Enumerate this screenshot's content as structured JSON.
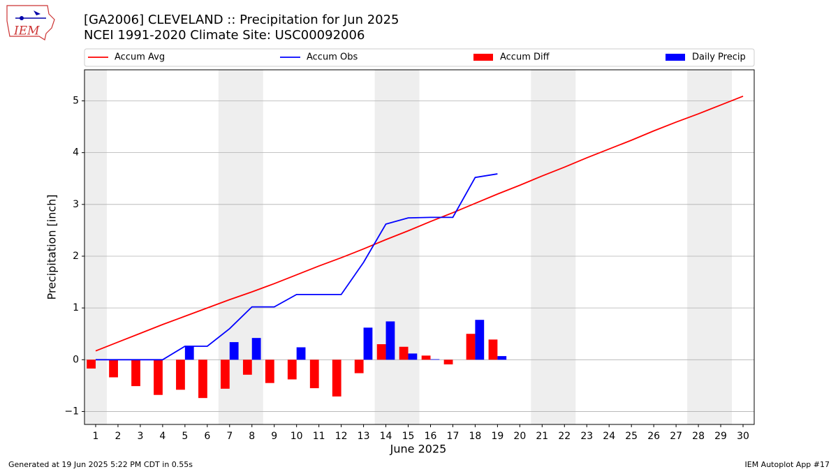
{
  "chart_data": {
    "type": "combo",
    "title": "[GA2006] CLEVELAND :: Precipitation for Jun 2025",
    "subtitle": "NCEI 1991-2020 Climate Site: USC00092006",
    "logo_text": "IEM",
    "x_label": "June 2025",
    "y_label": "Precipitation [inch]",
    "footer_left": "Generated at 19 Jun 2025 5:22 PM CDT in 0.55s",
    "footer_right": "IEM Autoplot App #17",
    "legend": "top",
    "grid": true,
    "weekend_color": "#eeeeee",
    "weekends": [
      [
        0.5,
        1.5
      ],
      [
        6.5,
        8.5
      ],
      [
        13.5,
        15.5
      ],
      [
        20.5,
        22.5
      ],
      [
        27.5,
        29.5
      ]
    ],
    "x": [
      1,
      2,
      3,
      4,
      5,
      6,
      7,
      8,
      9,
      10,
      11,
      12,
      13,
      14,
      15,
      16,
      17,
      18,
      19,
      20,
      21,
      22,
      23,
      24,
      25,
      26,
      27,
      28,
      29,
      30
    ],
    "xlim": [
      0.5,
      30.5
    ],
    "xticks": [
      1,
      2,
      3,
      4,
      5,
      6,
      7,
      8,
      9,
      10,
      11,
      12,
      13,
      14,
      15,
      16,
      17,
      18,
      19,
      20,
      21,
      22,
      23,
      24,
      25,
      26,
      27,
      28,
      29,
      30
    ],
    "ylim": [
      -1.25,
      5.6
    ],
    "yticks": [
      {
        "value": -1,
        "label": "−1"
      },
      0,
      1,
      2,
      3,
      4,
      5
    ],
    "series": [
      {
        "name": "Accum Avg",
        "color": "#ff0000",
        "kind": "line",
        "values": [
          0.17,
          0.34,
          0.51,
          0.68,
          0.84,
          1.0,
          1.16,
          1.31,
          1.47,
          1.64,
          1.81,
          1.97,
          2.14,
          2.32,
          2.49,
          2.67,
          2.84,
          3.02,
          3.2,
          3.37,
          3.55,
          3.72,
          3.9,
          4.07,
          4.24,
          4.42,
          4.59,
          4.75,
          4.92,
          5.09
        ]
      },
      {
        "name": "Accum Obs",
        "color": "#0000ff",
        "kind": "line",
        "values": [
          0,
          0,
          0,
          0,
          0.26,
          0.26,
          0.6,
          1.02,
          1.02,
          1.26,
          1.26,
          1.26,
          1.88,
          2.62,
          2.74,
          2.75,
          2.75,
          3.52,
          3.59,
          null,
          null,
          null,
          null,
          null,
          null,
          null,
          null,
          null,
          null,
          null
        ]
      },
      {
        "name": "Accum Diff",
        "color": "#ff0000",
        "kind": "bar",
        "values": [
          -0.17,
          -0.34,
          -0.51,
          -0.68,
          -0.58,
          -0.74,
          -0.56,
          -0.29,
          -0.45,
          -0.38,
          -0.55,
          -0.71,
          -0.26,
          0.3,
          0.25,
          0.08,
          -0.09,
          0.5,
          0.39,
          null,
          null,
          null,
          null,
          null,
          null,
          null,
          null,
          null,
          null,
          null
        ]
      },
      {
        "name": "Daily Precip",
        "color": "#0000ff",
        "kind": "bar",
        "values": [
          0,
          0,
          0,
          0,
          0.26,
          0,
          0.34,
          0.42,
          0,
          0.24,
          0,
          0,
          0.62,
          0.74,
          0.12,
          0.01,
          0,
          0.77,
          0.07,
          null,
          null,
          null,
          null,
          null,
          null,
          null,
          null,
          null,
          null,
          null
        ]
      }
    ]
  }
}
